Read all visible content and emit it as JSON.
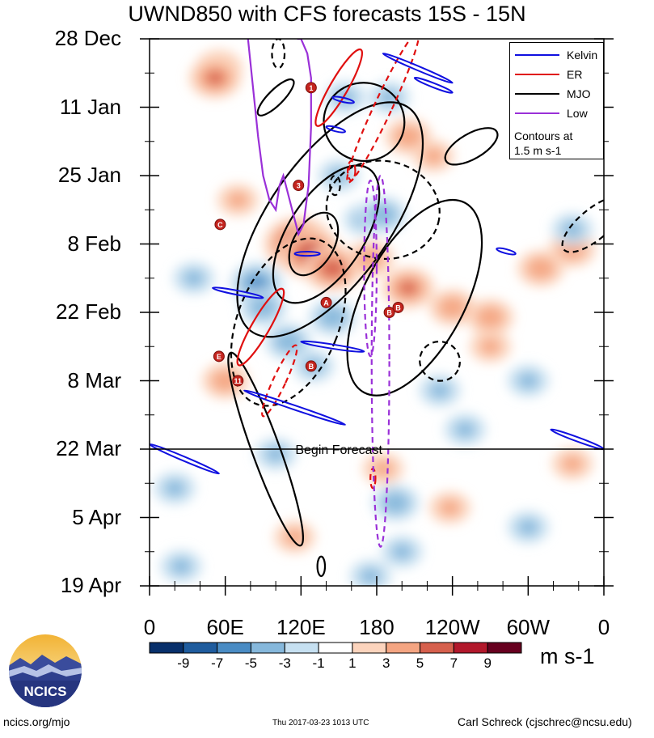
{
  "page": {
    "title": "UWND850 with CFS forecasts  15S - 15N",
    "units": "m s-1",
    "footer_left": "ncics.org/mjo",
    "footer_center": "Thu 2017-03-23 1013 UTC",
    "footer_right": "Carl Schreck (cjschrec@ncsu.edu)",
    "logo_text": "NCICS",
    "forecast_label": "Begin Forecast"
  },
  "chart_data": {
    "type": "heatmap",
    "title": "UWND850 with CFS forecasts  15S - 15N",
    "y_axis": {
      "tick_labels": [
        "28 Dec",
        "11 Jan",
        "25 Jan",
        "8 Feb",
        "22 Feb",
        "8 Mar",
        "22 Mar",
        "5 Apr",
        "19 Apr"
      ],
      "tick_days": [
        0,
        14,
        28,
        42,
        56,
        70,
        84,
        98,
        112
      ],
      "range_days": [
        0,
        112
      ],
      "direction": "time increases downward"
    },
    "x_axis": {
      "tick_labels": [
        "0",
        "60E",
        "120E",
        "180",
        "120W",
        "60W",
        "0"
      ],
      "tick_lon": [
        0,
        60,
        120,
        180,
        240,
        300,
        360
      ],
      "range_lon": [
        0,
        360
      ]
    },
    "forecast_start_day": 84,
    "colorbar": {
      "levels": [
        -9,
        -7,
        -5,
        -3,
        -1,
        1,
        3,
        5,
        7,
        9
      ],
      "tick_labels": [
        "-9",
        "-7",
        "-5",
        "-3",
        "-1",
        "1",
        "3",
        "5",
        "7",
        "9"
      ],
      "colors": [
        "#08306b",
        "#1f5c9e",
        "#4a8cc4",
        "#86b8dc",
        "#c6e0f1",
        "#ffffff",
        "#fcd4bd",
        "#f4a582",
        "#d6604d",
        "#b2182b",
        "#67001f"
      ]
    },
    "legend": {
      "position": "top-right",
      "items": [
        {
          "name": "Kelvin",
          "color": "#1010e0"
        },
        {
          "name": "ER",
          "color": "#e01010"
        },
        {
          "name": "MJO",
          "color": "#000000"
        },
        {
          "name": "Low",
          "color": "#9a30d8"
        }
      ],
      "note_line1": "Contours at",
      "note_line2": "1.5 m s-1"
    },
    "anomaly_centers": [
      {
        "lon": 55,
        "day": 6,
        "value": 4
      },
      {
        "lon": 52,
        "day": 8,
        "value": 5
      },
      {
        "lon": 70,
        "day": 33,
        "value": 3
      },
      {
        "lon": 118,
        "day": 42,
        "value": 8
      },
      {
        "lon": 128,
        "day": 44,
        "value": 7
      },
      {
        "lon": 145,
        "day": 47,
        "value": 6
      },
      {
        "lon": 175,
        "day": 45,
        "value": 4
      },
      {
        "lon": 205,
        "day": 51,
        "value": 5
      },
      {
        "lon": 240,
        "day": 55,
        "value": 4
      },
      {
        "lon": 270,
        "day": 57,
        "value": 4
      },
      {
        "lon": 205,
        "day": 20,
        "value": 4
      },
      {
        "lon": 225,
        "day": 24,
        "value": 3
      },
      {
        "lon": 310,
        "day": 47,
        "value": 4
      },
      {
        "lon": 335,
        "day": 43,
        "value": 4
      },
      {
        "lon": 60,
        "day": 70,
        "value": 4
      },
      {
        "lon": 270,
        "day": 63,
        "value": 3
      },
      {
        "lon": 115,
        "day": 102,
        "value": 3
      },
      {
        "lon": 185,
        "day": 88,
        "value": 3
      },
      {
        "lon": 238,
        "day": 96,
        "value": 3
      },
      {
        "lon": 335,
        "day": 87,
        "value": 3
      },
      {
        "lon": 35,
        "day": 49,
        "value": -3
      },
      {
        "lon": 85,
        "day": 50,
        "value": -5
      },
      {
        "lon": 90,
        "day": 55,
        "value": -4
      },
      {
        "lon": 110,
        "day": 62,
        "value": -4
      },
      {
        "lon": 145,
        "day": 57,
        "value": -4
      },
      {
        "lon": 130,
        "day": 67,
        "value": -3
      },
      {
        "lon": 170,
        "day": 37,
        "value": -3
      },
      {
        "lon": 185,
        "day": 36,
        "value": -4
      },
      {
        "lon": 150,
        "day": 28,
        "value": -3
      },
      {
        "lon": 20,
        "day": 92,
        "value": -3
      },
      {
        "lon": 100,
        "day": 85,
        "value": -3
      },
      {
        "lon": 195,
        "day": 95,
        "value": -4
      },
      {
        "lon": 230,
        "day": 72,
        "value": -3
      },
      {
        "lon": 300,
        "day": 70,
        "value": -3
      },
      {
        "lon": 335,
        "day": 39,
        "value": -3
      },
      {
        "lon": 300,
        "day": 100,
        "value": -3
      },
      {
        "lon": 175,
        "day": 110,
        "value": -3
      },
      {
        "lon": 200,
        "day": 105,
        "value": -3
      },
      {
        "lon": 25,
        "day": 108,
        "value": -3
      },
      {
        "lon": 155,
        "day": 12,
        "value": -3
      },
      {
        "lon": 190,
        "day": 12,
        "value": -3
      },
      {
        "lon": 250,
        "day": 80,
        "value": -3
      }
    ],
    "filtered_contours": [
      {
        "filter": "MJO",
        "sign": "positive",
        "lon": 143,
        "day": 37,
        "halfwidth_lon": 48,
        "halfheight_days": 28,
        "angle_deg": 35
      },
      {
        "filter": "MJO",
        "sign": "positive",
        "lon": 140,
        "day": 40,
        "halfwidth_lon": 30,
        "halfheight_days": 16,
        "angle_deg": 33
      },
      {
        "filter": "MJO",
        "sign": "positive",
        "lon": 130,
        "day": 42,
        "halfwidth_lon": 16,
        "halfheight_days": 7,
        "angle_deg": 30
      },
      {
        "filter": "MJO",
        "sign": "positive",
        "lon": 210,
        "day": 53,
        "halfwidth_lon": 40,
        "halfheight_days": 22,
        "angle_deg": 28
      },
      {
        "filter": "MJO",
        "sign": "positive",
        "lon": 170,
        "day": 17,
        "halfwidth_lon": 32,
        "halfheight_days": 8,
        "angle_deg": 10
      },
      {
        "filter": "MJO",
        "sign": "positive",
        "lon": 255,
        "day": 22,
        "halfwidth_lon": 10,
        "halfheight_days": 6,
        "angle_deg": 60
      },
      {
        "filter": "MJO",
        "sign": "positive",
        "lon": 100,
        "day": 12,
        "halfwidth_lon": 6,
        "halfheight_days": 5,
        "angle_deg": 45
      },
      {
        "filter": "MJO",
        "sign": "positive",
        "lon": 92,
        "day": 84,
        "halfwidth_lon": 11,
        "halfheight_days": 21,
        "angle_deg": -20
      },
      {
        "filter": "MJO",
        "sign": "positive",
        "lon": 136,
        "day": 108,
        "halfwidth_lon": 3,
        "halfheight_days": 2,
        "angle_deg": 0
      },
      {
        "filter": "MJO",
        "sign": "negative",
        "lon": 110,
        "day": 58,
        "halfwidth_lon": 40,
        "halfheight_days": 18,
        "angle_deg": 22
      },
      {
        "filter": "MJO",
        "sign": "negative",
        "lon": 185,
        "day": 35,
        "halfwidth_lon": 45,
        "halfheight_days": 10,
        "angle_deg": 10
      },
      {
        "filter": "MJO",
        "sign": "negative",
        "lon": 352,
        "day": 38,
        "halfwidth_lon": 12,
        "halfheight_days": 8,
        "angle_deg": 50
      },
      {
        "filter": "MJO",
        "sign": "negative",
        "lon": 230,
        "day": 66,
        "halfwidth_lon": 16,
        "halfheight_days": 4,
        "angle_deg": 25
      },
      {
        "filter": "MJO",
        "sign": "negative",
        "lon": 102,
        "day": 3,
        "halfwidth_lon": 5,
        "halfheight_days": 3,
        "angle_deg": 0
      },
      {
        "filter": "MJO",
        "sign": "negative",
        "lon": 147,
        "day": 30,
        "halfwidth_lon": 4,
        "halfheight_days": 2,
        "angle_deg": 0
      },
      {
        "filter": "ER",
        "sign": "positive",
        "lon": 150,
        "day": 10,
        "halfwidth_lon": 7,
        "halfheight_days": 9,
        "angle_deg": 30
      },
      {
        "filter": "ER",
        "sign": "positive",
        "lon": 88,
        "day": 59,
        "halfwidth_lon": 7,
        "halfheight_days": 9,
        "angle_deg": 30
      },
      {
        "filter": "ER",
        "sign": "negative",
        "lon": 185,
        "day": 14,
        "halfwidth_lon": 7,
        "halfheight_days": 17,
        "angle_deg": 25
      },
      {
        "filter": "ER",
        "sign": "negative",
        "lon": 160,
        "day": 27,
        "halfwidth_lon": 3,
        "halfheight_days": 2,
        "angle_deg": 0
      },
      {
        "filter": "ER",
        "sign": "negative",
        "lon": 103,
        "day": 70,
        "halfwidth_lon": 5,
        "halfheight_days": 8,
        "angle_deg": 25
      },
      {
        "filter": "ER",
        "sign": "negative",
        "lon": 177,
        "day": 90,
        "halfwidth_lon": 2,
        "halfheight_days": 2,
        "angle_deg": 0
      },
      {
        "filter": "Low",
        "sign": "negative",
        "lon": 183,
        "day": 66,
        "halfwidth_lon": 7,
        "halfheight_days": 38,
        "angle_deg": 0
      },
      {
        "filter": "Low",
        "sign": "negative",
        "lon": 175,
        "day": 47,
        "halfwidth_lon": 5,
        "halfheight_days": 18,
        "angle_deg": 0
      }
    ],
    "low_positive_path": {
      "filter": "Low",
      "lon": [
        78,
        82,
        86,
        90,
        95,
        100,
        103,
        106,
        110,
        118,
        122,
        126,
        128,
        128,
        125,
        120,
        117
      ],
      "day": [
        0,
        10,
        20,
        28,
        33,
        35,
        30,
        28,
        32,
        40,
        38,
        30,
        18,
        8,
        3,
        0,
        0
      ]
    },
    "kelvin_tracks": [
      {
        "lon_start": 185,
        "day_start": 3,
        "lon_end": 240,
        "day_end": 9
      },
      {
        "lon_start": 318,
        "day_start": 80,
        "lon_end": 360,
        "day_end": 84
      },
      {
        "lon_start": 0,
        "day_start": 83,
        "lon_end": 55,
        "day_end": 89
      },
      {
        "lon_start": 75,
        "day_start": 72,
        "lon_end": 155,
        "day_end": 79
      },
      {
        "lon_start": 50,
        "day_start": 51,
        "lon_end": 90,
        "day_end": 53
      },
      {
        "lon_start": 120,
        "day_start": 62,
        "lon_end": 170,
        "day_end": 64
      },
      {
        "lon_start": 115,
        "day_start": 44,
        "lon_end": 135,
        "day_end": 44
      },
      {
        "lon_start": 275,
        "day_start": 43,
        "lon_end": 290,
        "day_end": 44
      },
      {
        "lon_start": 145,
        "day_start": 12,
        "lon_end": 162,
        "day_end": 13
      },
      {
        "lon_start": 140,
        "day_start": 18,
        "lon_end": 155,
        "day_end": 19
      },
      {
        "lon_start": 210,
        "day_start": 8,
        "lon_end": 240,
        "day_end": 11
      }
    ],
    "storm_markers": [
      {
        "lon": 128,
        "day": 10,
        "label": "1"
      },
      {
        "lon": 118,
        "day": 30,
        "label": "3"
      },
      {
        "lon": 56,
        "day": 38,
        "label": "C"
      },
      {
        "lon": 140,
        "day": 54,
        "label": "A"
      },
      {
        "lon": 190,
        "day": 56,
        "label": "B"
      },
      {
        "lon": 197,
        "day": 55,
        "label": "B"
      },
      {
        "lon": 55,
        "day": 65,
        "label": "E"
      },
      {
        "lon": 128,
        "day": 67,
        "label": "B"
      },
      {
        "lon": 70,
        "day": 70,
        "label": "11"
      }
    ]
  }
}
